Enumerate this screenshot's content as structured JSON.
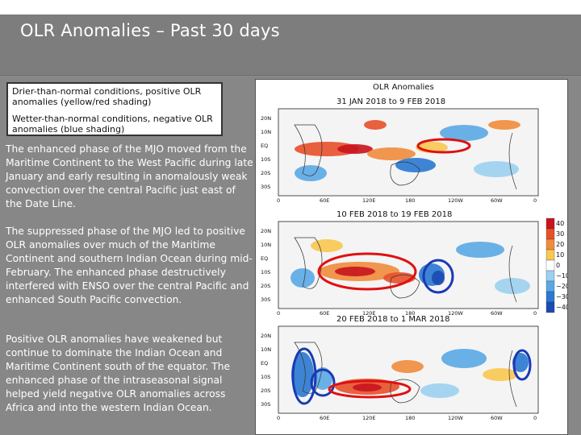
{
  "slide": {
    "title": "OLR Anomalies – Past 30 days"
  },
  "legend": {
    "drier": "Drier-than-normal conditions, positive OLR anomalies (yellow/red shading)",
    "wetter": "Wetter-than-normal conditions, negative OLR anomalies (blue shading)"
  },
  "paragraphs": [
    "The enhanced phase of the MJO moved from the Maritime Continent to the West Pacific during late January and early resulting in anomalously weak convection over the central Pacific just east of the Date Line.",
    "The suppressed phase of the MJO led to positive OLR anomalies over much of the Maritime Continent and southern Indian Ocean during mid-February. The enhanced phase destructively interfered with ENSO over the central Pacific and enhanced South Pacific convection.",
    "Positive OLR anomalies have weakened but continue to dominate the Indian Ocean and Maritime Continent south of the equator. The enhanced phase of the intraseasonal signal helped yield negative OLR anomalies across Africa and into the western Indian Ocean."
  ],
  "maps": {
    "header": "OLR Anomalies",
    "panels": [
      {
        "period": "31 JAN 2018 to 9 FEB 2018"
      },
      {
        "period": "10 FEB 2018 to 19 FEB 2018"
      },
      {
        "period": "20 FEB 2018 to 1 MAR 2018"
      }
    ],
    "lat_labels": [
      "20N",
      "10N",
      "EQ",
      "10S",
      "20S",
      "30S"
    ],
    "lon_labels": [
      "0",
      "60E",
      "120E",
      "180",
      "120W",
      "60W",
      "0"
    ],
    "colorbar_labels": [
      "40",
      "30",
      "20",
      "10",
      "0",
      "−10",
      "−20",
      "−30",
      "−40"
    ],
    "colorbar_colors": [
      "#c8141e",
      "#e8502a",
      "#f08c3c",
      "#f8c850",
      "#ffffff",
      "#9cd0f0",
      "#5aa8e6",
      "#2a78d2",
      "#1a4ab4"
    ]
  }
}
